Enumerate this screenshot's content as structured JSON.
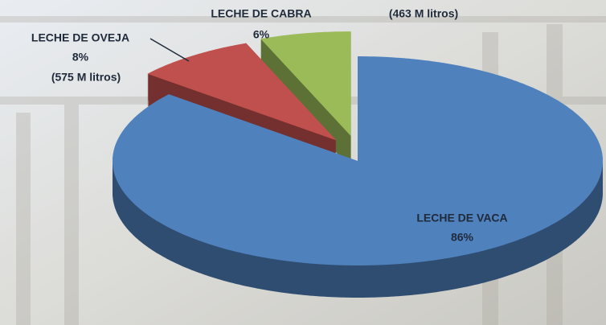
{
  "chart_data": {
    "type": "pie",
    "categories": [
      "LECHE DE VACA",
      "LECHE DE OVEJA",
      "LECHE DE CABRA"
    ],
    "values": [
      86,
      8,
      6
    ],
    "value_labels": [
      "86%",
      "8%",
      "6%"
    ],
    "colors": [
      "#4f81bd",
      "#c0504d",
      "#9bbb59"
    ],
    "annotations": [
      "(575 M litros)",
      "(463 M litros)"
    ]
  }
}
